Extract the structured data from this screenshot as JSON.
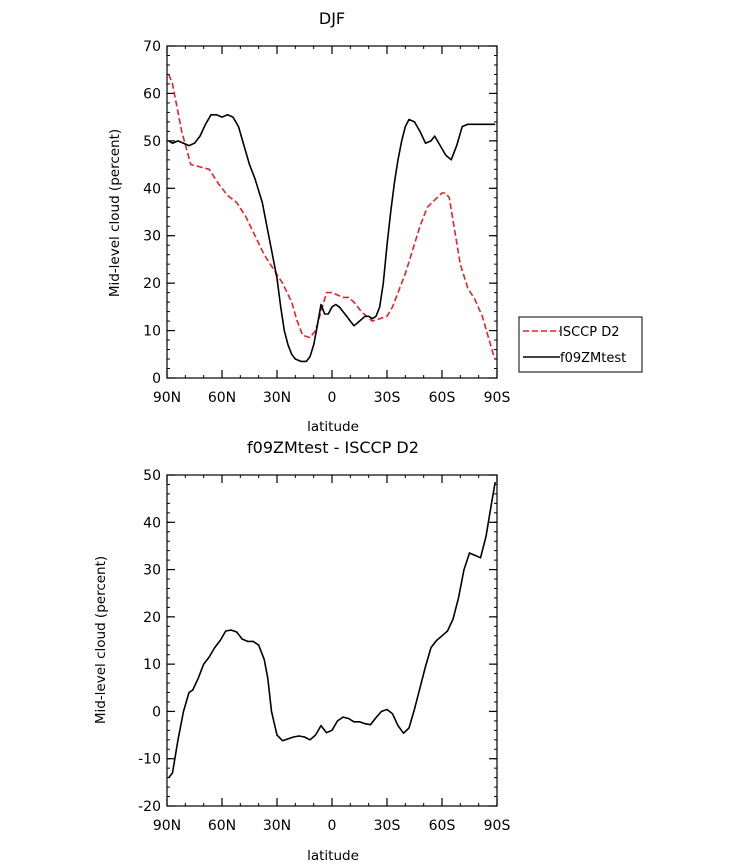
{
  "charts": [
    {
      "title": "DJF",
      "xlabel": "latitude",
      "ylabel": "Mid-level cloud (percent)"
    },
    {
      "title": "f09ZMtest - ISCCP D2",
      "xlabel": "latitude",
      "ylabel": "Mid-level cloud (percent)"
    }
  ],
  "legend": {
    "entries": [
      {
        "label": "ISCCP D2",
        "color": "#e8202a",
        "dash": true
      },
      {
        "label": "f09ZMtest",
        "color": "#000000",
        "dash": false
      }
    ]
  },
  "chart_data": [
    {
      "type": "line",
      "title": "DJF",
      "xlabel": "latitude",
      "ylabel": "Mid-level cloud (percent)",
      "xlim": [
        90,
        -90
      ],
      "ylim": [
        0,
        70
      ],
      "x_tick_values": [
        90,
        60,
        30,
        0,
        -30,
        -60,
        -90
      ],
      "x_tick_labels": [
        "90N",
        "60N",
        "30N",
        "0",
        "30S",
        "60S",
        "90S"
      ],
      "y_ticks": [
        0,
        10,
        20,
        30,
        40,
        50,
        60,
        70
      ],
      "legend_position": "right",
      "grid": false,
      "series": [
        {
          "name": "ISCCP D2",
          "color": "#e8202a",
          "dash": true,
          "x": [
            89,
            87,
            82,
            77,
            72,
            67,
            62,
            57,
            52,
            47,
            42,
            37,
            32,
            27,
            22,
            19,
            16,
            12,
            9,
            6,
            3,
            0,
            -3,
            -6,
            -9,
            -12,
            -16,
            -19,
            -22,
            -26,
            -30,
            -33,
            -36,
            -40,
            -44,
            -48,
            -52,
            -56,
            -60,
            -62,
            -64,
            -67,
            -70,
            -74,
            -78,
            -82,
            -85,
            -88,
            -89
          ],
          "y": [
            64,
            62,
            52,
            45,
            44.5,
            44,
            41,
            38.5,
            37,
            34,
            30,
            26,
            23,
            20,
            16,
            12,
            9,
            8.5,
            10,
            14,
            18,
            18,
            17.5,
            17,
            17,
            16,
            14,
            13,
            12,
            12.5,
            13,
            15,
            18,
            22,
            27,
            32,
            36,
            37.5,
            39,
            39,
            38,
            31,
            24,
            19,
            16.5,
            13,
            9,
            5,
            4
          ]
        },
        {
          "name": "f09ZMtest",
          "color": "#000000",
          "dash": false,
          "x": [
            89,
            87,
            84,
            81,
            78,
            75,
            72,
            69,
            66,
            63,
            60,
            57,
            54,
            51,
            48,
            45,
            42,
            38,
            35,
            33,
            30,
            28,
            26,
            24,
            22,
            20,
            17,
            14,
            12,
            10,
            8,
            6,
            4,
            2,
            0,
            -2,
            -4,
            -6,
            -8,
            -10,
            -12,
            -15,
            -18,
            -20,
            -22,
            -24,
            -26,
            -28,
            -30,
            -32,
            -34,
            -36,
            -38,
            -40,
            -42,
            -45,
            -48,
            -51,
            -54,
            -56,
            -59,
            -62,
            -65,
            -68,
            -71,
            -74,
            -77,
            -80,
            -83,
            -86,
            -89
          ],
          "y": [
            50,
            49.5,
            50,
            49.5,
            49,
            49.5,
            51,
            53.5,
            55.5,
            55.5,
            55,
            55.5,
            55,
            53,
            49,
            45,
            42,
            37,
            31,
            27,
            21,
            15,
            10,
            7,
            5,
            4,
            3.5,
            3.5,
            4.5,
            7,
            11,
            15.5,
            13.5,
            13.5,
            15,
            15.5,
            15,
            14,
            13,
            12,
            11,
            12,
            13,
            13,
            12.5,
            13,
            15,
            20,
            28,
            35,
            41,
            46,
            50,
            53,
            54.5,
            54,
            52,
            49.5,
            50,
            51,
            49,
            47,
            46,
            49,
            53,
            53.5,
            53.5,
            53.5,
            53.5,
            53.5,
            53.5
          ]
        }
      ]
    },
    {
      "type": "line",
      "title": "f09ZMtest - ISCCP D2",
      "xlabel": "latitude",
      "ylabel": "Mid-level cloud (percent)",
      "xlim": [
        90,
        -90
      ],
      "ylim": [
        -20,
        50
      ],
      "x_tick_values": [
        90,
        60,
        30,
        0,
        -30,
        -60,
        -90
      ],
      "x_tick_labels": [
        "90N",
        "60N",
        "30N",
        "0",
        "30S",
        "60S",
        "90S"
      ],
      "y_ticks": [
        -20,
        -10,
        0,
        10,
        20,
        30,
        40,
        50
      ],
      "grid": false,
      "series": [
        {
          "color": "#000000",
          "dash": false,
          "x": [
            89,
            87,
            84,
            81,
            78,
            76,
            73,
            70,
            67,
            64,
            61,
            58,
            55,
            52,
            49,
            46,
            43,
            40,
            37,
            35,
            33,
            30,
            27,
            24,
            21,
            18,
            15,
            12,
            9,
            6,
            3,
            0,
            -3,
            -6,
            -9,
            -12,
            -15,
            -18,
            -21,
            -24,
            -27,
            -30,
            -33,
            -36,
            -39,
            -42,
            -45,
            -48,
            -51,
            -54,
            -57,
            -60,
            -63,
            -66,
            -69,
            -72,
            -75,
            -78,
            -81,
            -84,
            -87,
            -89
          ],
          "y": [
            -14,
            -13,
            -6,
            0,
            4,
            4.5,
            7,
            10,
            11.5,
            13.5,
            15,
            17,
            17.2,
            16.8,
            15.3,
            14.8,
            14.8,
            14,
            11,
            7,
            0,
            -5,
            -6.2,
            -5.8,
            -5.4,
            -5.2,
            -5.4,
            -6,
            -5,
            -3,
            -4.5,
            -4,
            -2,
            -1.2,
            -1.5,
            -2.2,
            -2.2,
            -2.6,
            -2.8,
            -1.3,
            0,
            0.4,
            -0.5,
            -3,
            -4.6,
            -3.5,
            0.5,
            5,
            9.5,
            13.5,
            15,
            16,
            17,
            19.5,
            24,
            30,
            33.5,
            33,
            32.5,
            37,
            44,
            48.5
          ]
        }
      ]
    }
  ]
}
